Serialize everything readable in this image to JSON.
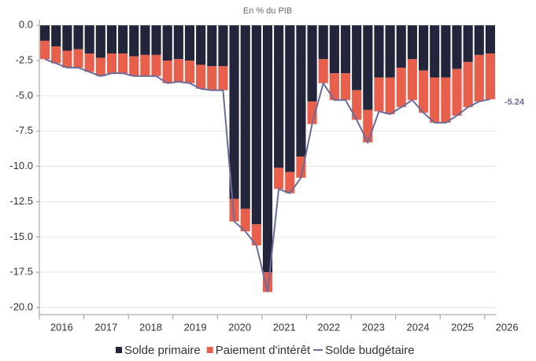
{
  "chart_data": {
    "type": "stacked_bar_line",
    "title": "En % du PIB",
    "categories": [
      "2016",
      null,
      null,
      null,
      "2017",
      null,
      null,
      null,
      "2018",
      null,
      null,
      null,
      "2019",
      null,
      null,
      null,
      "2020",
      null,
      null,
      null,
      "2021",
      null,
      null,
      null,
      "2022",
      null,
      null,
      null,
      "2023",
      null,
      null,
      null,
      "2024",
      null,
      null,
      null,
      "2025",
      null,
      null,
      null,
      "2026"
    ],
    "series": [
      {
        "name": "Solde primaire",
        "color": "#23253a",
        "kind": "bar",
        "values": [
          -1.1,
          -1.5,
          -1.8,
          -1.7,
          -2.0,
          -2.3,
          -2.0,
          -2.0,
          -2.2,
          -2.1,
          -2.1,
          -2.5,
          -2.4,
          -2.5,
          -2.8,
          -2.9,
          -2.9,
          -12.3,
          -13.0,
          -14.1,
          -17.5,
          -10.1,
          -10.4,
          -9.3,
          -5.4,
          -2.4,
          -3.4,
          -3.4,
          -4.6,
          -6.0,
          -3.7,
          -3.7,
          -3.0,
          -2.4,
          -3.2,
          -3.7,
          -3.7,
          -3.1,
          -2.6,
          -2.1,
          -2.0
        ]
      },
      {
        "name": "Paiement d'intérêt",
        "color": "#e8604c",
        "kind": "bar",
        "values": [
          -1.3,
          -1.2,
          -1.2,
          -1.3,
          -1.3,
          -1.3,
          -1.4,
          -1.4,
          -1.4,
          -1.5,
          -1.5,
          -1.6,
          -1.6,
          -1.6,
          -1.7,
          -1.7,
          -1.7,
          -1.6,
          -1.6,
          -1.5,
          -1.4,
          -1.5,
          -1.5,
          -1.5,
          -1.6,
          -1.7,
          -1.9,
          -1.9,
          -2.1,
          -2.3,
          -2.4,
          -2.6,
          -2.8,
          -2.9,
          -3.0,
          -3.2,
          -3.2,
          -3.3,
          -3.2,
          -3.3,
          -3.24
        ]
      },
      {
        "name": "Solde budgétaire",
        "color": "#6a6d9c",
        "kind": "line",
        "values": [
          -2.4,
          -2.7,
          -3.0,
          -3.0,
          -3.3,
          -3.6,
          -3.4,
          -3.4,
          -3.6,
          -3.6,
          -3.6,
          -4.1,
          -4.0,
          -4.1,
          -4.5,
          -4.6,
          -4.6,
          -13.9,
          -14.6,
          -15.6,
          -18.9,
          -11.6,
          -11.9,
          -10.8,
          -7.0,
          -4.1,
          -5.3,
          -5.3,
          -6.7,
          -8.3,
          -6.1,
          -6.3,
          -5.8,
          -5.3,
          -6.2,
          -6.9,
          -6.9,
          -6.4,
          -5.8,
          -5.4,
          -5.24
        ]
      }
    ],
    "ylim": [
      -20.5,
      0.4
    ],
    "yticks": [
      {
        "value": 0,
        "label": "0.0"
      },
      -2.5,
      {
        "value": -5,
        "label": "-5.0"
      },
      -7.5,
      {
        "value": -10,
        "label": "-10.0"
      },
      -12.5,
      {
        "value": -15,
        "label": "-15.0"
      },
      -17.5,
      {
        "value": -20,
        "label": "-20.0"
      }
    ],
    "grid": true
  }
}
